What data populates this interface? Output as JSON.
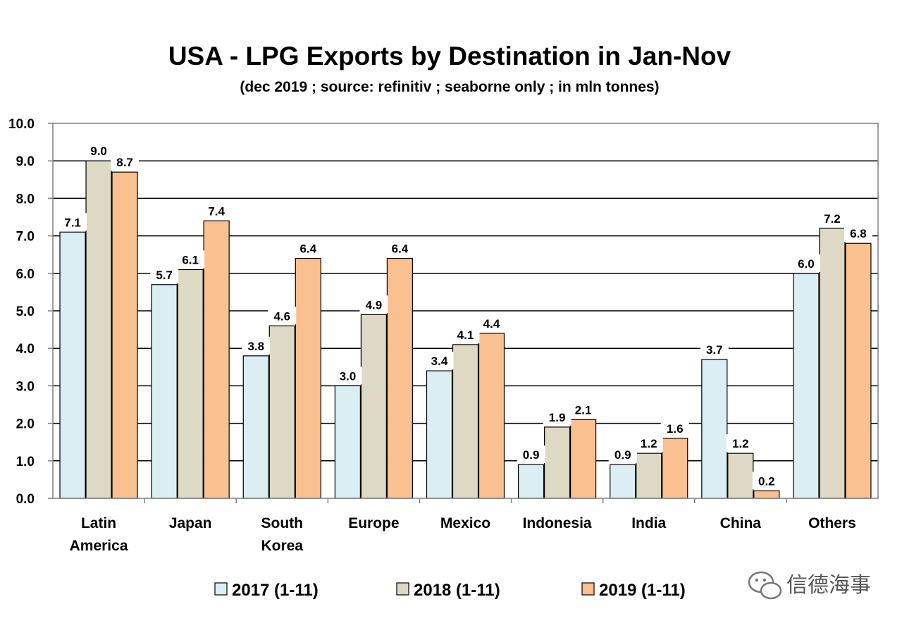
{
  "chart_data": {
    "type": "bar",
    "title": "USA - LPG Exports by Destination in Jan-Nov",
    "subtitle": "(dec 2019 ; source: refinitiv ; seaborne only ; in mln tonnes)",
    "categories": [
      [
        "Latin",
        "America"
      ],
      [
        "Japan"
      ],
      [
        "South",
        "Korea"
      ],
      [
        "Europe"
      ],
      [
        "Mexico"
      ],
      [
        "Indonesia"
      ],
      [
        "India"
      ],
      [
        "China"
      ],
      [
        "Others"
      ]
    ],
    "series": [
      {
        "name": "2017 (1-11)",
        "color": "#dbeef4",
        "values": [
          7.1,
          5.7,
          3.8,
          3.0,
          3.4,
          0.9,
          0.9,
          3.7,
          6.0
        ],
        "labels": [
          "7.1",
          "5.7",
          "3.8",
          "3.0",
          "3.4",
          "0.9",
          "0.9",
          "3.7",
          "6.0"
        ]
      },
      {
        "name": "2018 (1-11)",
        "color": "#ddd9c4",
        "values": [
          9.0,
          6.1,
          4.6,
          4.9,
          4.1,
          1.9,
          1.2,
          1.2,
          7.2
        ],
        "labels": [
          "9.0",
          "6.1",
          "4.6",
          "4.9",
          "4.1",
          "1.9",
          "1.2",
          "1.2",
          "7.2"
        ]
      },
      {
        "name": "2019 (1-11)",
        "color": "#fac090",
        "values": [
          8.7,
          7.4,
          6.4,
          6.4,
          4.4,
          2.1,
          1.6,
          0.2,
          6.8
        ],
        "labels": [
          "8.7",
          "7.4",
          "6.4",
          "6.4",
          "4.4",
          "2.1",
          "1.6",
          "0.2",
          "6.8"
        ]
      }
    ],
    "yticks": [
      "0.0",
      "1.0",
      "2.0",
      "3.0",
      "4.0",
      "5.0",
      "6.0",
      "7.0",
      "8.0",
      "9.0",
      "10.0"
    ],
    "ylim": [
      0,
      10
    ],
    "grid": true,
    "legend_position": "bottom"
  },
  "watermark": {
    "text": "信德海事",
    "icon": "wechat-icon"
  }
}
